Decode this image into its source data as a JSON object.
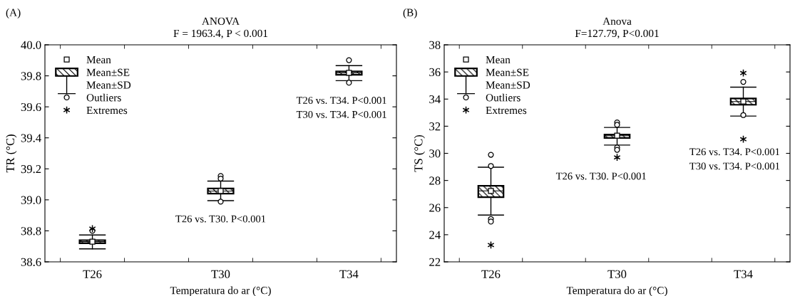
{
  "chart_data": [
    {
      "type": "box",
      "title": "ANOVA",
      "subtitle": "F = 1963.4, P < 0.001",
      "xlabel": "Temperatura do ar (°C)",
      "ylabel": "TR (°C)",
      "categories": [
        "T26",
        "T30",
        "T34"
      ],
      "ylim": [
        38.6,
        40.0
      ],
      "yticks": [
        {
          "value": 38.6,
          "label": "38.6"
        },
        {
          "value": 38.8,
          "label": "38.8"
        },
        {
          "value": 39.0,
          "label": "39.0"
        },
        {
          "value": 39.2,
          "label": "39.2"
        },
        {
          "value": 39.4,
          "label": "39.4"
        },
        {
          "value": 39.6,
          "label": "39.6"
        },
        {
          "value": 39.8,
          "label": "39.8"
        },
        {
          "value": 40.0,
          "label": "40.0"
        }
      ],
      "grid": false,
      "legend": "top left",
      "boxes": [
        {
          "low": 38.684,
          "q1": 38.72,
          "median": 38.73,
          "q3": 38.74,
          "high": 38.773,
          "mean": 38.73,
          "outliers": [
            38.8
          ]
        },
        {
          "low": 38.995,
          "q1": 39.04,
          "median": 39.057,
          "q3": 39.073,
          "high": 39.121,
          "mean": 39.057,
          "outliers": [
            39.154,
            39.137,
            38.988
          ]
        },
        {
          "low": 39.769,
          "q1": 39.807,
          "median": 39.819,
          "q3": 39.828,
          "high": 39.866,
          "mean": 39.819,
          "outliers": [
            39.901,
            39.756
          ]
        }
      ],
      "series": [
        {
          "type": "scatter",
          "name": "Extremes",
          "color": "#000000",
          "marker": "cross",
          "x": [
            "T26"
          ],
          "values": [
            38.814
          ]
        }
      ],
      "annotations": [
        "(A)",
        "Mean",
        "Mean±SE",
        "Mean±SD",
        "Outliers",
        "T26 vs. T30. P<0.001",
        "T26 vs. T34. P<0.001",
        "T30 vs. T34. P<0.001"
      ]
    },
    {
      "type": "box",
      "title": "Anova",
      "subtitle": "F=127.79, P<0.001",
      "xlabel": "Temperatura do ar (°C)",
      "ylabel": "TS (°C)",
      "categories": [
        "T26",
        "T30",
        "T34"
      ],
      "ylim": [
        22,
        38
      ],
      "yticks": [
        22,
        24,
        26,
        28,
        30,
        32,
        34,
        36,
        38
      ],
      "grid": false,
      "legend": "top left",
      "boxes": [
        {
          "low": 25.45,
          "q1": 26.77,
          "median": 27.23,
          "q3": 27.61,
          "high": 28.98,
          "mean": 27.23,
          "outliers": [
            29.89,
            29.07,
            25.16,
            24.97
          ]
        },
        {
          "low": 30.61,
          "q1": 31.13,
          "median": 31.3,
          "q3": 31.39,
          "high": 31.91,
          "mean": 31.3,
          "outliers": [
            32.28,
            32.1,
            30.43,
            30.26
          ]
        },
        {
          "low": 32.75,
          "q1": 33.58,
          "median": 33.82,
          "q3": 34.05,
          "high": 34.88,
          "mean": 33.82,
          "outliers": [
            35.27,
            32.82
          ]
        }
      ],
      "series": [
        {
          "type": "scatter",
          "name": "Extremes",
          "color": "#000000",
          "marker": "cross",
          "x": [
            "T26",
            "T30",
            "T34",
            "T34"
          ],
          "values": [
            23.24,
            29.7,
            35.92,
            31.04
          ]
        }
      ],
      "annotations": [
        "(B)",
        "Mean",
        "Mean±SE",
        "Mean±SD",
        "Outliers",
        "T26 vs. T30. P<0.001",
        "T26 vs. T34. P<0.001",
        "T30 vs. T34. P<0.001"
      ]
    }
  ]
}
